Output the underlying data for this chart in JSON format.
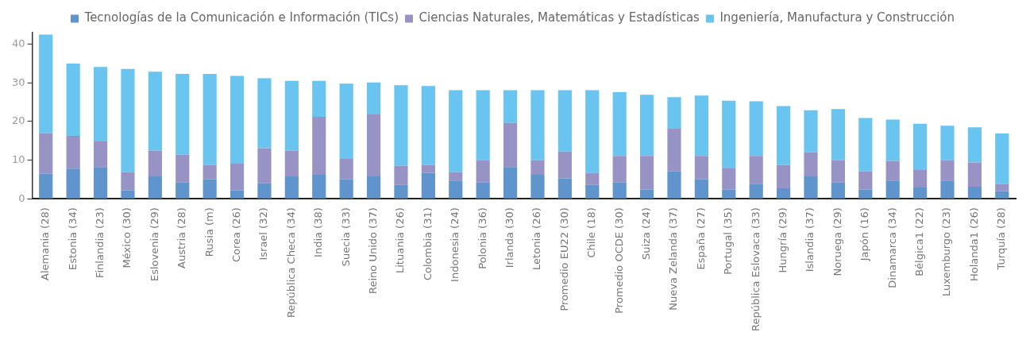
{
  "chart_data": {
    "type": "bar",
    "stacked": true,
    "categories": [
      "Alemania (28)",
      "Estonia (34)",
      "Finlandia (23)",
      "México (30)",
      "Eslovenia (29)",
      "Austria (28)",
      "Rusia (m)",
      "Corea (26)",
      "Israel (32)",
      "República Checa (34)",
      "India (38)",
      "Suecia (33)",
      "Reino Unido (37)",
      "Lituania (26)",
      "Colombia (31)",
      "Indonesia (24)",
      "Polonia (36)",
      "Irlanda (30)",
      "Letonia (26)",
      "Promedio EU22 (30)",
      "Chile (18)",
      "Promedio OCDE (30)",
      "Suiza (24)",
      "Nueva Zelanda (37)",
      "España (27)",
      "Portugal (35)",
      "República Eslovaca (33)",
      "Hungría (29)",
      "Islandia (37)",
      "Noruega (29)",
      "Japón (16)",
      "Dinamarca (34)",
      "Bélgica1 (22)",
      "Luxemburgo (23)",
      "Holanda1 (26)",
      "Turquía (28)"
    ],
    "series": [
      {
        "name": "Tecnologías de la Comunicación e Información (TICs)",
        "color": "#5f94cc",
        "values": [
          6.5,
          7.8,
          8.2,
          2.2,
          5.8,
          4.2,
          5.1,
          2.2,
          4.0,
          5.8,
          6.2,
          5.1,
          5.8,
          3.6,
          6.7,
          4.7,
          4.2,
          8.2,
          6.2,
          5.3,
          3.6,
          4.2,
          2.4,
          7.1,
          5.1,
          2.4,
          3.8,
          2.7,
          5.8,
          4.2,
          2.4,
          4.7,
          2.9,
          4.7,
          3.1,
          2.0
        ]
      },
      {
        "name": "Ciencias Naturales, Matemáticas y Estadísticas",
        "color": "#9794c5",
        "values": [
          10.5,
          8.5,
          6.8,
          4.7,
          6.7,
          7.2,
          3.6,
          6.9,
          9.1,
          6.7,
          15.0,
          5.2,
          16.2,
          4.9,
          2.0,
          2.2,
          5.8,
          11.4,
          3.8,
          6.9,
          3.1,
          6.9,
          8.7,
          11.2,
          6.0,
          5.6,
          7.3,
          6.0,
          6.2,
          5.8,
          4.7,
          5.1,
          4.7,
          5.3,
          6.3,
          1.8
        ]
      },
      {
        "name": "Ingeniería, Manufactura y Construcción",
        "color": "#69c4f0",
        "values": [
          25.5,
          18.7,
          19.1,
          26.7,
          20.4,
          20.9,
          23.6,
          22.7,
          18.1,
          18.0,
          9.3,
          19.5,
          8.1,
          20.9,
          20.5,
          21.2,
          18.1,
          8.5,
          18.1,
          15.9,
          21.4,
          16.5,
          15.8,
          8.0,
          15.6,
          17.4,
          14.1,
          15.3,
          10.9,
          13.2,
          13.8,
          10.7,
          11.8,
          8.9,
          9.1,
          13.1
        ]
      }
    ],
    "ylim": [
      0,
      43
    ],
    "yticks": [
      0,
      10,
      20,
      30,
      40
    ],
    "grid": false,
    "legend": "top"
  }
}
